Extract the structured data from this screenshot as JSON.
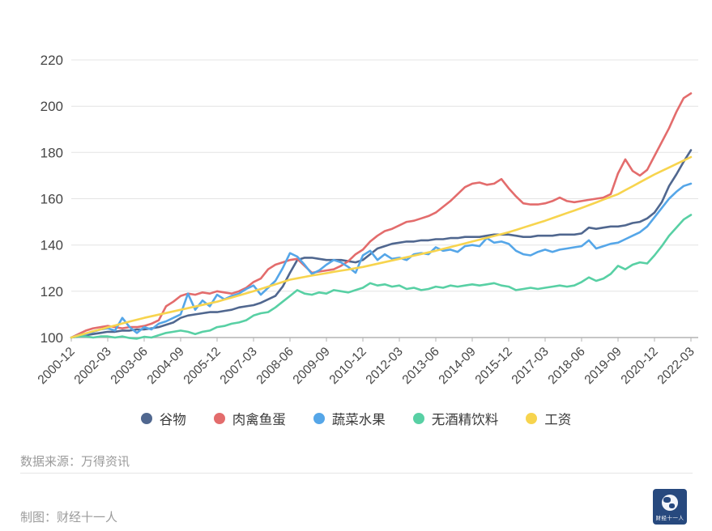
{
  "chart_data": {
    "type": "line",
    "grid": true,
    "legend_position": "bottom",
    "y_ticks": [
      100,
      120,
      140,
      160,
      180,
      200,
      220
    ],
    "ylim": [
      100,
      220
    ],
    "x_tick_labels": [
      "2000-12",
      "2002-03",
      "2003-06",
      "2004-09",
      "2005-12",
      "2007-03",
      "2008-06",
      "2009-09",
      "2010-12",
      "2012-03",
      "2013-06",
      "2014-09",
      "2015-12",
      "2017-03",
      "2018-06",
      "2019-09",
      "2020-12",
      "2022-03"
    ],
    "x_note": "quarterly points, 5 quarters between labeled ticks, 86 points total",
    "series": [
      {
        "name": "谷物",
        "color": "#50678f",
        "values": [
          100,
          100.5,
          101,
          101.5,
          102,
          102.5,
          102.5,
          103,
          103,
          103.5,
          103.5,
          104,
          104.5,
          105.5,
          106.5,
          108.5,
          109.5,
          110,
          110.5,
          111,
          111,
          111.5,
          112,
          113,
          113.5,
          114,
          115,
          116.5,
          118,
          122,
          128,
          133.5,
          134.5,
          134.5,
          134,
          133.5,
          133.5,
          133.5,
          133,
          132.5,
          133.5,
          136,
          138.5,
          139.5,
          140.5,
          141,
          141.5,
          141.5,
          142,
          142,
          142.5,
          142.5,
          143,
          143,
          143.5,
          143.5,
          143.5,
          144,
          144.5,
          144.5,
          144.5,
          144,
          143.5,
          143.5,
          144,
          144,
          144,
          144.5,
          144.5,
          144.5,
          145,
          147.5,
          147,
          147.5,
          148,
          148,
          148.5,
          149.5,
          150,
          151.5,
          154,
          158.5,
          165.5,
          170.5,
          176,
          181
        ]
      },
      {
        "name": "肉禽鱼蛋",
        "color": "#e36c6c",
        "values": [
          100,
          101.5,
          103,
          104,
          104.5,
          105,
          104.5,
          104,
          104.5,
          104.5,
          105,
          106,
          107.5,
          113.5,
          115.5,
          118,
          119,
          118.5,
          119.5,
          119,
          120,
          119.5,
          119,
          120,
          121.5,
          124,
          125.5,
          129.5,
          131.5,
          132.5,
          133.5,
          134,
          131,
          128,
          128.5,
          129,
          129.5,
          131,
          133,
          136,
          138,
          141.5,
          144,
          146,
          147,
          148.5,
          150,
          150.5,
          151.5,
          152.5,
          154,
          156.5,
          159,
          162,
          165,
          166.5,
          167,
          166,
          166.5,
          168.5,
          164.5,
          161,
          158,
          157.5,
          157.5,
          158,
          159,
          160.5,
          159,
          158.5,
          159,
          159.5,
          160,
          160.5,
          162,
          171,
          177,
          172,
          170,
          172.5,
          178.5,
          184.5,
          190.5,
          197.5,
          203.5,
          205.5
        ]
      },
      {
        "name": "蔬菜水果",
        "color": "#55a6e8",
        "values": [
          100,
          101,
          101.5,
          102.5,
          103.5,
          104,
          103,
          108.5,
          104.5,
          102,
          104.5,
          103.5,
          106,
          107,
          108.5,
          110,
          119,
          112,
          116,
          113.5,
          118.5,
          116.5,
          118,
          119,
          121,
          122.5,
          118.5,
          121.5,
          124.5,
          130,
          136.5,
          135,
          131.5,
          127.5,
          129,
          131.5,
          133.5,
          132.5,
          130.5,
          128,
          135.5,
          137.5,
          133.5,
          136,
          134,
          134.5,
          133.5,
          136,
          136.5,
          136,
          139,
          137.5,
          138,
          137,
          139.5,
          140,
          139.5,
          143,
          141,
          141.5,
          140.5,
          137.5,
          136,
          135.5,
          137,
          138,
          137,
          138,
          138.5,
          139,
          139.5,
          142,
          138.5,
          139.5,
          140.5,
          141,
          142.5,
          144,
          145.5,
          148,
          152,
          156,
          160,
          163,
          165.5,
          166.5
        ]
      },
      {
        "name": "无酒精饮料",
        "color": "#58d0a4",
        "values": [
          100,
          100.5,
          100.5,
          100,
          100.5,
          100.5,
          100,
          100.5,
          99.8,
          99.5,
          100.3,
          100,
          101,
          102,
          102.5,
          103,
          102.5,
          101.5,
          102.5,
          103,
          104.5,
          105,
          106,
          106.5,
          107.5,
          109.5,
          110.5,
          111,
          113,
          115.5,
          118,
          120.5,
          119,
          118.5,
          119.5,
          119,
          120.5,
          120,
          119.5,
          120.5,
          121.5,
          123.5,
          122.5,
          123,
          122,
          122.5,
          121,
          121.5,
          120.5,
          121,
          122,
          121.5,
          122.5,
          122,
          122.5,
          123,
          122.5,
          123,
          123.5,
          122.5,
          122,
          120.5,
          121,
          121.5,
          121,
          121.5,
          122,
          122.5,
          122,
          122.5,
          124,
          126,
          124.5,
          125.5,
          127.5,
          131,
          129.5,
          131.5,
          132.5,
          132,
          135.5,
          139.5,
          144,
          147.5,
          151,
          153
        ]
      },
      {
        "name": "工资",
        "color": "#f7d44e",
        "values": [
          100,
          100.9,
          101.8,
          102.7,
          103.5,
          104.4,
          105.2,
          106.1,
          106.9,
          107.7,
          108.5,
          109.2,
          109.9,
          110.6,
          111.3,
          112,
          112.7,
          113.4,
          114.1,
          114.8,
          115.5,
          116.4,
          117.3,
          118.2,
          119.1,
          120,
          121,
          122,
          123,
          124,
          125,
          125.6,
          126.2,
          126.8,
          127.3,
          127.8,
          128.4,
          128.9,
          129.4,
          130,
          130.5,
          131.2,
          131.9,
          132.6,
          133.3,
          134,
          134.7,
          135.4,
          136.1,
          136.8,
          137.5,
          138.3,
          139.1,
          139.9,
          140.7,
          141.5,
          142.3,
          143.1,
          143.9,
          144.7,
          145.5,
          146.5,
          147.5,
          148.5,
          149.5,
          150.5,
          151.6,
          152.7,
          153.8,
          154.9,
          156,
          157.2,
          158.4,
          159.6,
          160.8,
          162,
          163.7,
          165.4,
          167.1,
          168.8,
          170.5,
          172,
          173.5,
          175,
          176.5,
          178
        ]
      }
    ]
  },
  "footer": {
    "source": "数据来源：万得资讯",
    "credit": "制图：财经十一人",
    "logo_text": "财经十一人"
  }
}
